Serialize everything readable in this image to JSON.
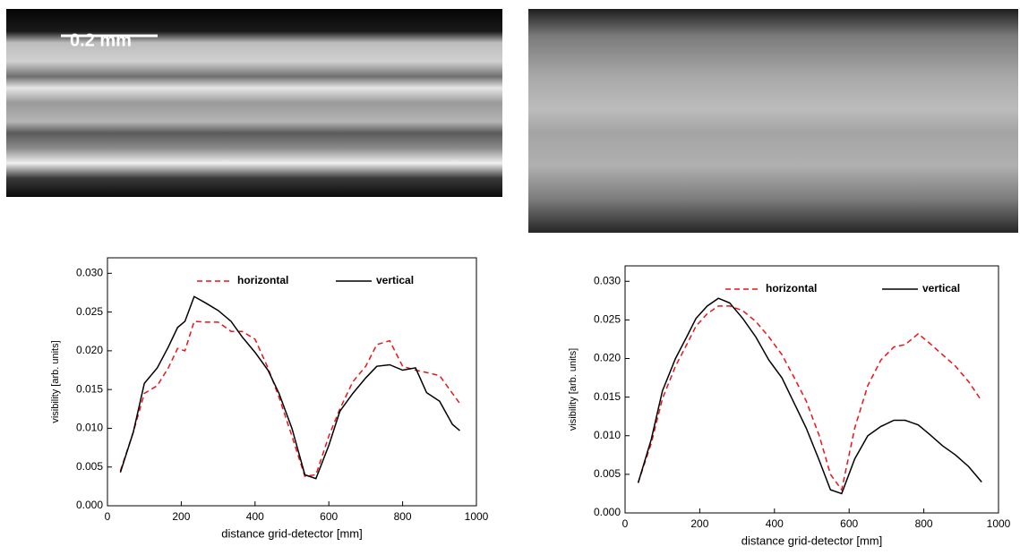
{
  "scale_bar": "0.2 mm",
  "chart_data": [
    {
      "type": "line",
      "x": [
        35,
        70,
        100,
        135,
        165,
        190,
        210,
        235,
        265,
        300,
        335,
        365,
        400,
        435,
        465,
        500,
        535,
        565,
        600,
        630,
        665,
        700,
        730,
        765,
        800,
        835,
        865,
        900,
        935,
        955
      ],
      "series": [
        {
          "name": "horizontal",
          "color": "#e8141a",
          "dash": true,
          "values": [
            0.0045,
            0.0095,
            0.0145,
            0.0155,
            0.0178,
            0.0203,
            0.02,
            0.0238,
            0.0237,
            0.0237,
            0.0225,
            0.0225,
            0.0215,
            0.0178,
            0.014,
            0.009,
            0.0038,
            0.004,
            0.009,
            0.0125,
            0.016,
            0.018,
            0.0208,
            0.0213,
            0.018,
            0.0175,
            0.0172,
            0.0168,
            0.0145,
            0.0132
          ]
        },
        {
          "name": "vertical",
          "color": "#000000",
          "dash": false,
          "values": [
            0.0043,
            0.0095,
            0.0158,
            0.0178,
            0.0205,
            0.023,
            0.0238,
            0.027,
            0.0262,
            0.0252,
            0.0238,
            0.0218,
            0.0198,
            0.0175,
            0.0145,
            0.01,
            0.004,
            0.0035,
            0.0078,
            0.0122,
            0.0145,
            0.0165,
            0.018,
            0.0182,
            0.0175,
            0.0178,
            0.0146,
            0.0135,
            0.0105,
            0.0097
          ]
        }
      ],
      "xlabel": "distance grid-detector [mm]",
      "ylabel": "visibility [arb. units]",
      "xlim": [
        0,
        1000
      ],
      "xticks": [
        0,
        200,
        400,
        600,
        800,
        1000
      ],
      "ylim": [
        0,
        0.032
      ],
      "yticks": [
        {
          "value": 0,
          "label": "0.000"
        },
        {
          "value": 0.005,
          "label": "0.005"
        },
        {
          "value": 0.01,
          "label": "0.010"
        },
        {
          "value": 0.015,
          "label": "0.015"
        },
        {
          "value": 0.02,
          "label": "0.020"
        },
        {
          "value": 0.025,
          "label": "0.025"
        },
        {
          "value": 0.03,
          "label": "0.030"
        }
      ]
    },
    {
      "type": "line",
      "x": [
        35,
        70,
        100,
        135,
        165,
        190,
        220,
        250,
        280,
        315,
        350,
        385,
        420,
        450,
        485,
        520,
        550,
        580,
        615,
        650,
        685,
        720,
        750,
        785,
        815,
        850,
        885,
        920,
        955
      ],
      "series": [
        {
          "name": "horizontal",
          "color": "#e8141a",
          "dash": true,
          "values": [
            0.0039,
            0.009,
            0.0148,
            0.019,
            0.0218,
            0.0242,
            0.0258,
            0.0268,
            0.0268,
            0.0262,
            0.0248,
            0.0228,
            0.0205,
            0.0178,
            0.0145,
            0.01,
            0.005,
            0.003,
            0.011,
            0.0165,
            0.0198,
            0.0215,
            0.0218,
            0.0232,
            0.022,
            0.0205,
            0.019,
            0.017,
            0.0145
          ]
        },
        {
          "name": "vertical",
          "color": "#000000",
          "dash": false,
          "values": [
            0.0039,
            0.0095,
            0.0158,
            0.02,
            0.0228,
            0.0252,
            0.0268,
            0.0278,
            0.0272,
            0.0252,
            0.0228,
            0.0198,
            0.0175,
            0.0145,
            0.011,
            0.0068,
            0.003,
            0.0025,
            0.007,
            0.01,
            0.0112,
            0.012,
            0.012,
            0.0114,
            0.0102,
            0.0087,
            0.0075,
            0.006,
            0.004
          ]
        }
      ],
      "xlabel": "distance grid-detector [mm]",
      "ylabel": "visibility [arb. units]",
      "xlim": [
        0,
        1000
      ],
      "xticks": [
        0,
        200,
        400,
        600,
        800,
        1000
      ],
      "ylim": [
        0,
        0.032
      ],
      "yticks": [
        {
          "value": 0,
          "label": "0.000"
        },
        {
          "value": 0.005,
          "label": "0.005"
        },
        {
          "value": 0.01,
          "label": "0.010"
        },
        {
          "value": 0.015,
          "label": "0.015"
        },
        {
          "value": 0.02,
          "label": "0.020"
        },
        {
          "value": 0.025,
          "label": "0.025"
        },
        {
          "value": 0.03,
          "label": "0.030"
        }
      ]
    }
  ]
}
